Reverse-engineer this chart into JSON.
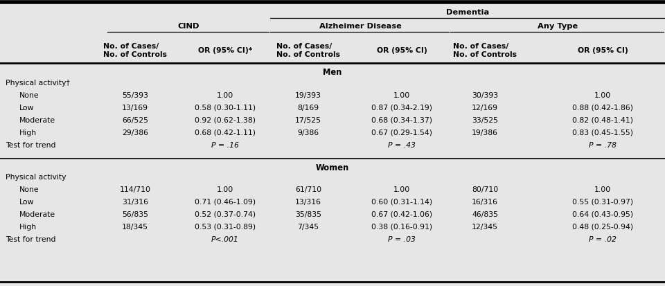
{
  "bg_color": "#e6e6e6",
  "title_dementia": "Dementia",
  "title_cind": "CIND",
  "title_ad": "Alzheimer Disease",
  "title_any": "Any Type",
  "col_headers_cases1": "No. of Cases/\nNo. of Controls",
  "col_headers_or1": "OR (95% CI)*",
  "col_headers_cases2": "No. of Cases/\nNo. of Controls",
  "col_headers_or2": "OR (95% CI)",
  "col_headers_cases3": "No. of Cases/\nNo. of Controls",
  "col_headers_or3": "OR (95% CI)",
  "section_men": "Men",
  "section_women": "Women",
  "men_rows": [
    [
      "Physical activity†",
      "",
      "",
      "",
      "",
      "",
      ""
    ],
    [
      "None",
      "55/393",
      "1.00",
      "19/393",
      "1.00",
      "30/393",
      "1.00"
    ],
    [
      "Low",
      "13/169",
      "0.58 (0.30-1.11)",
      "8/169",
      "0.87 (0.34-2.19)",
      "12/169",
      "0.88 (0.42-1.86)"
    ],
    [
      "Moderate",
      "66/525",
      "0.92 (0.62-1.38)",
      "17/525",
      "0.68 (0.34-1.37)",
      "33/525",
      "0.82 (0.48-1.41)"
    ],
    [
      "High",
      "29/386",
      "0.68 (0.42-1.11)",
      "9/386",
      "0.67 (0.29-1.54)",
      "19/386",
      "0.83 (0.45-1.55)"
    ],
    [
      "Test for trend",
      "",
      "P = .16",
      "",
      "P = .43",
      "",
      "P = .78"
    ]
  ],
  "women_rows": [
    [
      "Physical activity",
      "",
      "",
      "",
      "",
      "",
      ""
    ],
    [
      "None",
      "114/710",
      "1.00",
      "61/710",
      "1.00",
      "80/710",
      "1.00"
    ],
    [
      "Low",
      "31/316",
      "0.71 (0.46-1.09)",
      "13/316",
      "0.60 (0.31-1.14)",
      "16/316",
      "0.55 (0.31-0.97)"
    ],
    [
      "Moderate",
      "56/835",
      "0.52 (0.37-0.74)",
      "35/835",
      "0.67 (0.42-1.06)",
      "46/835",
      "0.64 (0.43-0.95)"
    ],
    [
      "High",
      "18/345",
      "0.53 (0.31-0.89)",
      "7/345",
      "0.38 (0.16-0.91)",
      "12/345",
      "0.48 (0.25-0.94)"
    ],
    [
      "Test for trend",
      "",
      "P<.001",
      "",
      "P = .03",
      "",
      "P = .02"
    ]
  ],
  "font_size": 7.8,
  "header_font_size": 8.2
}
